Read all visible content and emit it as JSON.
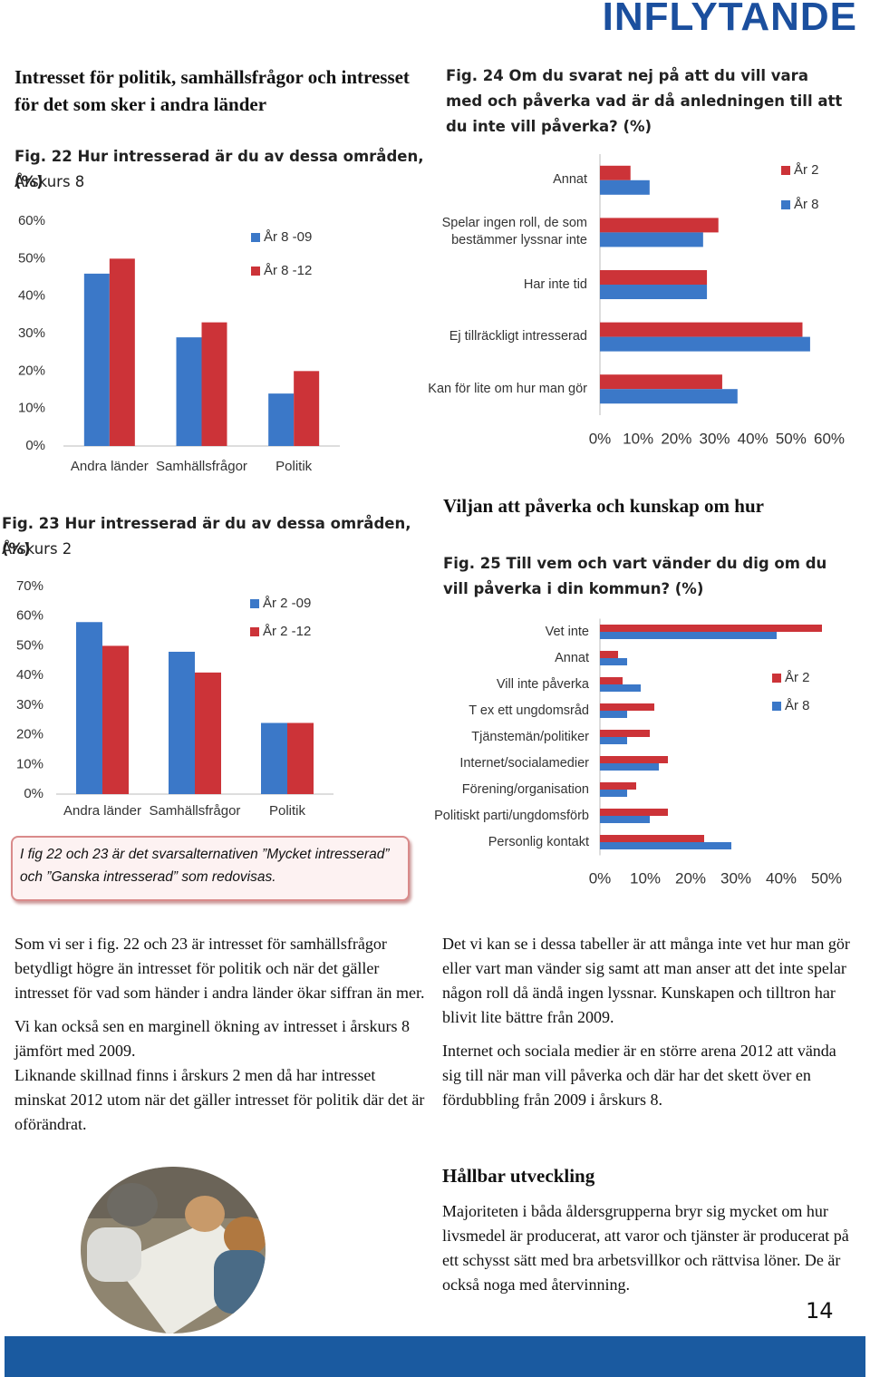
{
  "header": {
    "title": "INFLYTANDE"
  },
  "left_heading": "Intresset för politik, samhällsfrågor och intresset för det som sker i andra länder",
  "chart_data": [
    {
      "type": "bar",
      "title": "Fig. 22  Hur intresserad är du av dessa områden, (%)",
      "subtitle": "Årskurs 8",
      "categories": [
        "Andra länder",
        "Samhällsfrågor",
        "Politik"
      ],
      "series": [
        {
          "name": "År 8 -09",
          "color": "#3b78c8",
          "values": [
            46,
            29,
            14
          ]
        },
        {
          "name": "År 8 -12",
          "color": "#cc3338",
          "values": [
            50,
            33,
            20
          ]
        }
      ],
      "ylim": [
        0,
        60
      ],
      "yticks": [
        {
          "value": 0,
          "label": "0%"
        },
        {
          "value": 10,
          "label": "10%"
        },
        {
          "value": 20,
          "label": "20%"
        },
        {
          "value": 30,
          "label": "30%"
        },
        {
          "value": 40,
          "label": "40%"
        },
        {
          "value": 50,
          "label": "50%"
        },
        {
          "value": 60,
          "label": "60%"
        }
      ]
    },
    {
      "type": "bar",
      "title": "Fig. 23  Hur intresserad är du av dessa områden, (%)",
      "subtitle": "Årskurs 2",
      "categories": [
        "Andra länder",
        "Samhällsfrågor",
        "Politik"
      ],
      "series": [
        {
          "name": "År 2 -09",
          "color": "#3b78c8",
          "values": [
            58,
            48,
            24
          ]
        },
        {
          "name": "År 2 -12",
          "color": "#cc3338",
          "values": [
            50,
            41,
            24
          ]
        }
      ],
      "ylim": [
        0,
        70
      ],
      "yticks": [
        {
          "value": 0,
          "label": "0%"
        },
        {
          "value": 10,
          "label": "10%"
        },
        {
          "value": 20,
          "label": "20%"
        },
        {
          "value": 30,
          "label": "30%"
        },
        {
          "value": 40,
          "label": "40%"
        },
        {
          "value": 50,
          "label": "50%"
        },
        {
          "value": 60,
          "label": "60%"
        },
        {
          "value": 70,
          "label": "70%"
        }
      ]
    },
    {
      "type": "barh",
      "title": "Fig. 24 Om du svarat nej på att du vill vara med och påverka vad är då anledningen till att du inte vill påverka? (%)",
      "categories": [
        "Annat",
        "Spelar ingen roll, de som bestämmer lyssnar inte",
        "Har inte tid",
        "Ej tillräckligt intresserad",
        "Kan för lite om hur man gör"
      ],
      "series": [
        {
          "name": "År 2",
          "color": "#cc3338",
          "values": [
            8,
            31,
            28,
            53,
            32
          ]
        },
        {
          "name": "År 8",
          "color": "#3b78c8",
          "values": [
            13,
            27,
            28,
            55,
            36
          ]
        }
      ],
      "xlim": [
        0,
        60
      ],
      "xticks": [
        {
          "value": 0,
          "label": "0%"
        },
        {
          "value": 10,
          "label": "10%"
        },
        {
          "value": 20,
          "label": "20%"
        },
        {
          "value": 30,
          "label": "30%"
        },
        {
          "value": 40,
          "label": "40%"
        },
        {
          "value": 50,
          "label": "50%"
        },
        {
          "value": 60,
          "label": "60%"
        }
      ]
    },
    {
      "type": "barh",
      "title": "Fig. 25  Till vem och vart vänder du dig om du vill påverka i din kommun? (%)",
      "categories": [
        "Vet inte",
        "Annat",
        "Vill inte påverka",
        "T ex ett ungdomsråd",
        "Tjänstemän/politiker",
        "Internet/socialamedier",
        "Förening/organisation",
        "Politiskt parti/ungdomsförb",
        "Personlig kontakt"
      ],
      "series": [
        {
          "name": "År 2",
          "color": "#cc3338",
          "values": [
            49,
            4,
            5,
            12,
            11,
            15,
            8,
            15,
            23
          ]
        },
        {
          "name": "År 8",
          "color": "#3b78c8",
          "values": [
            39,
            6,
            9,
            6,
            6,
            13,
            6,
            11,
            29
          ]
        }
      ],
      "xlim": [
        0,
        50
      ],
      "xticks": [
        {
          "value": 0,
          "label": "0%"
        },
        {
          "value": 10,
          "label": "10%"
        },
        {
          "value": 20,
          "label": "20%"
        },
        {
          "value": 30,
          "label": "30%"
        },
        {
          "value": 40,
          "label": "40%"
        },
        {
          "value": 50,
          "label": "50%"
        }
      ]
    }
  ],
  "note": "I fig 22 och 23 är det svarsalternativen ”Mycket intresserad” och ”Ganska intresserad” som redovisas.",
  "right_heading": "Viljan att påverka och kunskap om hur",
  "body_left": [
    "Som vi ser i fig. 22 och 23 är intresset för samhällsfrågor betydligt högre än intresset för politik och när det gäller intresset för vad som händer i andra länder ökar siffran än mer.",
    "Vi kan också sen en marginell ökning av intresset i årskurs 8 jämfört med 2009.",
    "Liknande skillnad finns i årskurs 2 men då har intresset minskat 2012 utom när det gäller intresset för politik där det är oförändrat."
  ],
  "body_right": [
    "Det vi kan se i dessa tabeller är att många inte vet hur man gör eller vart man vänder sig samt att man anser att det inte spelar någon roll då ändå ingen lyssnar. Kunskapen och tilltron har blivit lite bättre från 2009.",
    "Internet och sociala medier är en större arena 2012 att vända sig till när man vill påverka och där har det skett över en fördubbling från 2009 i årskurs 8."
  ],
  "section": {
    "heading": "Hållbar utveckling",
    "text": "Majoriteten i båda åldersgrupperna bryr sig mycket om hur livsmedel är producerat, att varor och tjänster är producerat på ett schysst sätt med bra arbetsvillkor och rättvisa löner. De är också noga med återvinning."
  },
  "page_number": 14
}
